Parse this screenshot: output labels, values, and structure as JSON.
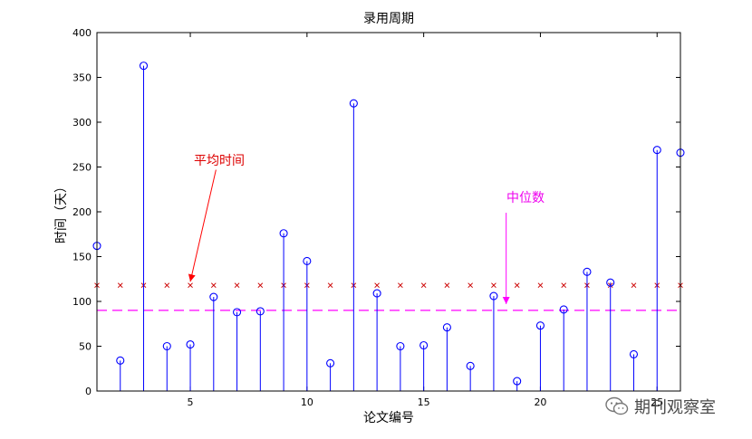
{
  "chart_data": {
    "type": "stem",
    "title": "录用周期",
    "xlabel": "论文编号",
    "ylabel": "时间（天）",
    "xlim": [
      1,
      26
    ],
    "ylim": [
      0,
      400
    ],
    "xticks": [
      5,
      10,
      15,
      20,
      25
    ],
    "yticks": [
      0,
      50,
      100,
      150,
      200,
      250,
      300,
      350,
      400
    ],
    "grid": false,
    "series": [
      {
        "x": [
          1,
          2,
          3,
          4,
          5,
          6,
          7,
          8,
          9,
          10,
          11,
          12,
          13,
          14,
          15,
          16,
          17,
          18,
          19,
          20,
          21,
          22,
          23,
          24,
          25,
          26
        ],
        "values": [
          162,
          34,
          363,
          50,
          52,
          105,
          88,
          89,
          176,
          145,
          31,
          321,
          109,
          50,
          51,
          71,
          28,
          106,
          11,
          73,
          91,
          133,
          121,
          41,
          269,
          266
        ],
        "color": "#0000ff",
        "marker": "circle"
      }
    ],
    "reference_lines": {
      "mean": {
        "value": 118,
        "style": "x-markers",
        "color": "#cc0000"
      },
      "median": {
        "value": 90,
        "style": "dashed",
        "color": "#ff00ff"
      }
    },
    "annotations": [
      {
        "text": "平均时间",
        "color": "#dd0000",
        "from": [
          6.1,
          255
        ],
        "to": [
          5,
          118
        ]
      },
      {
        "text": "中位数",
        "color": "#ee00ee",
        "from": [
          19,
          205
        ],
        "to": [
          19,
          93
        ]
      }
    ]
  },
  "watermark": {
    "text": "期刊观察室",
    "icon": "wechat-icon"
  }
}
